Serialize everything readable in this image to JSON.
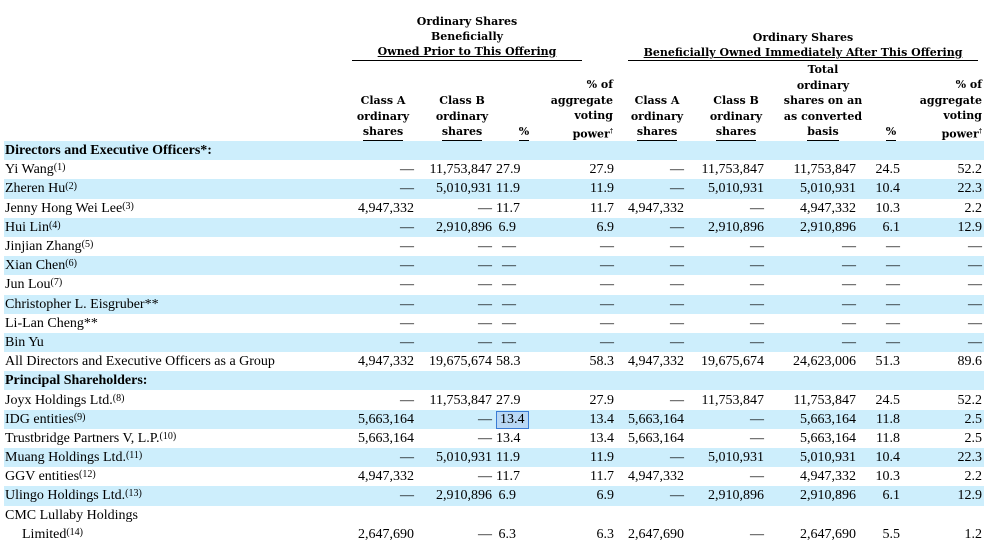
{
  "groups": [
    {
      "lines": [
        "Ordinary Shares",
        "Beneficially",
        "Owned Prior to This Offering"
      ]
    },
    {
      "lines": [
        "Ordinary Shares",
        "Beneficially Owned Immediately After This Offering"
      ]
    }
  ],
  "columns": [
    {
      "lines": [
        "Class A",
        "ordinary",
        "shares"
      ]
    },
    {
      "lines": [
        "Class B",
        "ordinary",
        "shares"
      ]
    },
    {
      "lines": [
        "%"
      ]
    },
    {
      "lines": [
        "% of",
        "aggregate",
        "voting",
        "power"
      ],
      "mark": "†"
    },
    {
      "lines": [
        "Class A",
        "ordinary",
        "shares"
      ]
    },
    {
      "lines": [
        "Class B",
        "ordinary",
        "shares"
      ]
    },
    {
      "lines": [
        "Total",
        "ordinary",
        "shares on an",
        "as converted",
        "basis"
      ]
    },
    {
      "lines": [
        "%"
      ]
    },
    {
      "lines": [
        "% of",
        "aggregate",
        "voting",
        "power"
      ],
      "mark": "†"
    }
  ],
  "rows": [
    {
      "type": "section",
      "label": "Directors and Executive Officers*:"
    },
    {
      "label": "Yi Wang",
      "note": "(1)",
      "v": [
        "—",
        "11,753,847",
        "27.9",
        "27.9",
        "—",
        "11,753,847",
        "11,753,847",
        "24.5",
        "52.2"
      ]
    },
    {
      "label": "Zheren Hu",
      "note": "(2)",
      "v": [
        "—",
        "5,010,931",
        "11.9",
        "11.9",
        "—",
        "5,010,931",
        "5,010,931",
        "10.4",
        "22.3"
      ]
    },
    {
      "label": "Jenny Hong Wei Lee",
      "note": "(3)",
      "v": [
        "4,947,332",
        "—",
        "11.7",
        "11.7",
        "4,947,332",
        "—",
        "4,947,332",
        "10.3",
        "2.2"
      ]
    },
    {
      "label": "Hui Lin",
      "note": "(4)",
      "v": [
        "—",
        "2,910,896",
        "6.9",
        "6.9",
        "—",
        "2,910,896",
        "2,910,896",
        "6.1",
        "12.9"
      ]
    },
    {
      "label": "Jinjian Zhang",
      "note": "(5)",
      "v": [
        "—",
        "—",
        "—",
        "—",
        "—",
        "—",
        "—",
        "—",
        "—"
      ]
    },
    {
      "label": "Xian Chen",
      "note": "(6)",
      "v": [
        "—",
        "—",
        "—",
        "—",
        "—",
        "—",
        "—",
        "—",
        "—"
      ]
    },
    {
      "label": "Jun Lou",
      "note": "(7)",
      "v": [
        "—",
        "—",
        "—",
        "—",
        "—",
        "—",
        "—",
        "—",
        "—"
      ]
    },
    {
      "label": "Christopher L. Eisgruber**",
      "note": "",
      "v": [
        "—",
        "—",
        "—",
        "—",
        "—",
        "—",
        "—",
        "—",
        "—"
      ]
    },
    {
      "label": "Li-Lan Cheng**",
      "note": "",
      "v": [
        "—",
        "—",
        "—",
        "—",
        "—",
        "—",
        "—",
        "—",
        "—"
      ]
    },
    {
      "label": "Bin Yu",
      "note": "",
      "v": [
        "—",
        "—",
        "—",
        "—",
        "—",
        "—",
        "—",
        "—",
        "—"
      ]
    },
    {
      "label": "All Directors and Executive Officers as a Group",
      "note": "",
      "v": [
        "4,947,332",
        "19,675,674",
        "58.3",
        "58.3",
        "4,947,332",
        "19,675,674",
        "24,623,006",
        "51.3",
        "89.6"
      ]
    },
    {
      "type": "section",
      "label": "Principal Shareholders:"
    },
    {
      "label": "Joyx Holdings Ltd.",
      "note": "(8)",
      "v": [
        "—",
        "11,753,847",
        "27.9",
        "27.9",
        "—",
        "11,753,847",
        "11,753,847",
        "24.5",
        "52.2"
      ]
    },
    {
      "label": "IDG entities",
      "note": "(9)",
      "v": [
        "5,663,164",
        "—",
        "13.4",
        "13.4",
        "5,663,164",
        "—",
        "5,663,164",
        "11.8",
        "2.5"
      ],
      "highlight": 2
    },
    {
      "label": "Trustbridge Partners V, L.P.",
      "note": "(10)",
      "v": [
        "5,663,164",
        "—",
        "13.4",
        "13.4",
        "5,663,164",
        "—",
        "5,663,164",
        "11.8",
        "2.5"
      ]
    },
    {
      "label": "Muang Holdings Ltd.",
      "note": "(11)",
      "v": [
        "—",
        "5,010,931",
        "11.9",
        "11.9",
        "—",
        "5,010,931",
        "5,010,931",
        "10.4",
        "22.3"
      ]
    },
    {
      "label": "GGV entities",
      "note": "(12)",
      "v": [
        "4,947,332",
        "—",
        "11.7",
        "11.7",
        "4,947,332",
        "—",
        "4,947,332",
        "10.3",
        "2.2"
      ]
    },
    {
      "label": "Ulingo Holdings Ltd.",
      "note": "(13)",
      "v": [
        "—",
        "2,910,896",
        "6.9",
        "6.9",
        "—",
        "2,910,896",
        "2,910,896",
        "6.1",
        "12.9"
      ]
    },
    {
      "label": "CMC Lullaby Holdings",
      "note": "",
      "v": [
        "",
        "",
        "",
        "",
        "",
        "",
        "",
        "",
        ""
      ]
    },
    {
      "label": "Limited",
      "note": "(14)",
      "indent": true,
      "v": [
        "2,647,690",
        "—",
        "6.3",
        "6.3",
        "2,647,690",
        "—",
        "2,647,690",
        "5.5",
        "1.2"
      ]
    }
  ]
}
